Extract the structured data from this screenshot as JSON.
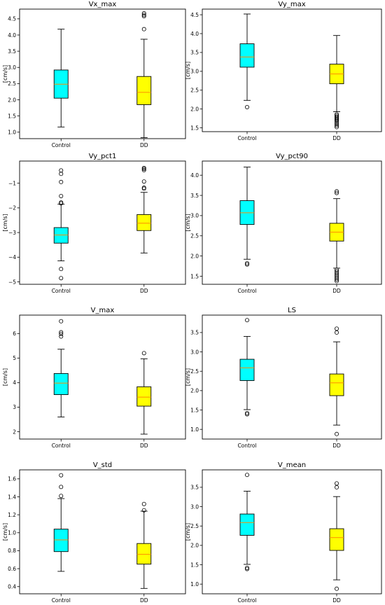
{
  "colors": {
    "control": "#00ffff",
    "dd": "#ffff00",
    "median": "#ff8c00",
    "frame": "#000000"
  },
  "chart_data": [
    {
      "type": "box",
      "title": "Vx_max",
      "ylabel": "[cm/s]",
      "categories": [
        "Control",
        "DD"
      ],
      "ylim": [
        0.8,
        4.8
      ],
      "yticks": [
        1.0,
        1.5,
        2.0,
        2.5,
        3.0,
        3.5,
        4.0,
        4.5
      ],
      "ytick_labels": [
        "1.0",
        "1.5",
        "2.0",
        "2.5",
        "3.0",
        "3.5",
        "4.0",
        "4.5"
      ],
      "series": [
        {
          "q1": 2.05,
          "median": 2.48,
          "q3": 2.92,
          "whisker_low": 1.16,
          "whisker_high": 4.18,
          "outliers": []
        },
        {
          "q1": 1.85,
          "median": 2.23,
          "q3": 2.72,
          "whisker_low": 0.83,
          "whisker_high": 3.87,
          "outliers": [
            4.18,
            4.58,
            4.62,
            4.67
          ]
        }
      ]
    },
    {
      "type": "box",
      "title": "Vy_max",
      "ylabel": "[cm/s]",
      "categories": [
        "Control",
        "DD"
      ],
      "ylim": [
        1.4,
        4.65
      ],
      "yticks": [
        1.5,
        2.0,
        2.5,
        3.0,
        3.5,
        4.0,
        4.5
      ],
      "ytick_labels": [
        "1.5",
        "2.0",
        "2.5",
        "3.0",
        "3.5",
        "4.0",
        "4.5"
      ],
      "series": [
        {
          "q1": 3.11,
          "median": 3.38,
          "q3": 3.73,
          "whisker_low": 2.23,
          "whisker_high": 4.52,
          "outliers": [
            2.05
          ]
        },
        {
          "q1": 2.67,
          "median": 2.93,
          "q3": 3.19,
          "whisker_low": 1.93,
          "whisker_high": 3.95,
          "outliers": [
            1.52,
            1.56,
            1.6,
            1.64,
            1.68,
            1.71,
            1.74,
            1.77,
            1.8,
            1.83,
            1.86
          ]
        }
      ]
    },
    {
      "type": "box",
      "title": "Vy_pct1",
      "ylabel": "[cm/s]",
      "categories": [
        "Control",
        "DD"
      ],
      "ylim": [
        -5.1,
        -0.1
      ],
      "yticks": [
        -5,
        -4,
        -3,
        -2,
        -1
      ],
      "ytick_labels": [
        "−5",
        "−4",
        "−3",
        "−2",
        "−1"
      ],
      "series": [
        {
          "q1": -3.43,
          "median": -3.1,
          "q3": -2.8,
          "whisker_low": -4.15,
          "whisker_high": -1.85,
          "outliers": [
            -4.85,
            -4.48,
            -1.82,
            -1.78,
            -1.52,
            -0.95,
            -0.62,
            -0.48
          ]
        },
        {
          "q1": -2.92,
          "median": -2.62,
          "q3": -2.27,
          "whisker_low": -3.83,
          "whisker_high": -1.37,
          "outliers": [
            -1.22,
            -1.18,
            -0.93,
            -0.47,
            -0.42,
            -0.38
          ]
        }
      ]
    },
    {
      "type": "box",
      "title": "Vy_pct90",
      "ylabel": "[cm/s]",
      "categories": [
        "Control",
        "DD"
      ],
      "ylim": [
        1.3,
        4.35
      ],
      "yticks": [
        1.5,
        2.0,
        2.5,
        3.0,
        3.5,
        4.0
      ],
      "ytick_labels": [
        "1.5",
        "2.0",
        "2.5",
        "3.0",
        "3.5",
        "4.0"
      ],
      "series": [
        {
          "q1": 2.78,
          "median": 3.07,
          "q3": 3.37,
          "whisker_low": 1.92,
          "whisker_high": 4.2,
          "outliers": [
            1.79,
            1.82
          ]
        },
        {
          "q1": 2.37,
          "median": 2.59,
          "q3": 2.81,
          "whisker_low": 1.7,
          "whisker_high": 3.42,
          "outliers": [
            1.38,
            1.42,
            1.46,
            1.5,
            1.54,
            1.58,
            1.62,
            1.66,
            3.56,
            3.6
          ]
        }
      ]
    },
    {
      "type": "box",
      "title": "V_max",
      "ylabel": "[cm/s]",
      "categories": [
        "Control",
        "DD"
      ],
      "ylim": [
        1.7,
        6.75
      ],
      "yticks": [
        2,
        3,
        4,
        5,
        6
      ],
      "ytick_labels": [
        "2",
        "3",
        "4",
        "5",
        "6"
      ],
      "series": [
        {
          "q1": 3.51,
          "median": 3.98,
          "q3": 4.37,
          "whisker_low": 2.6,
          "whisker_high": 5.36,
          "outliers": [
            5.88,
            5.98,
            6.05,
            6.5
          ]
        },
        {
          "q1": 3.04,
          "median": 3.41,
          "q3": 3.83,
          "whisker_low": 1.9,
          "whisker_high": 4.97,
          "outliers": [
            5.2
          ]
        }
      ]
    },
    {
      "type": "box",
      "title": "LS",
      "ylabel": "[cm/s]",
      "categories": [
        "Control",
        "DD"
      ],
      "ylim": [
        0.75,
        3.95
      ],
      "yticks": [
        1.0,
        1.5,
        2.0,
        2.5,
        3.0,
        3.5
      ],
      "ytick_labels": [
        "1.0",
        "1.5",
        "2.0",
        "2.5",
        "3.0",
        "3.5"
      ],
      "series": [
        {
          "q1": 2.26,
          "median": 2.59,
          "q3": 2.81,
          "whisker_low": 1.51,
          "whisker_high": 3.4,
          "outliers": [
            1.39,
            1.42,
            3.82
          ]
        },
        {
          "q1": 1.87,
          "median": 2.2,
          "q3": 2.43,
          "whisker_low": 1.11,
          "whisker_high": 3.26,
          "outliers": [
            0.88,
            3.5,
            3.6
          ]
        }
      ]
    },
    {
      "type": "box",
      "title": "V_std",
      "ylabel": "[cm/s]",
      "categories": [
        "Control",
        "DD"
      ],
      "ylim": [
        0.32,
        1.7
      ],
      "yticks": [
        0.4,
        0.6,
        0.8,
        1.0,
        1.2,
        1.4,
        1.6
      ],
      "ytick_labels": [
        "0.4",
        "0.6",
        "0.8",
        "1.0",
        "1.2",
        "1.4",
        "1.6"
      ],
      "series": [
        {
          "q1": 0.79,
          "median": 0.92,
          "q3": 1.04,
          "whisker_low": 0.57,
          "whisker_high": 1.38,
          "outliers": [
            1.41,
            1.51,
            1.64
          ]
        },
        {
          "q1": 0.65,
          "median": 0.76,
          "q3": 0.88,
          "whisker_low": 0.38,
          "whisker_high": 1.24,
          "outliers": [
            1.25,
            1.32
          ]
        }
      ]
    },
    {
      "type": "box",
      "title": "V_mean",
      "ylabel": "[cm/s]",
      "categories": [
        "Control",
        "DD"
      ],
      "ylim": [
        0.75,
        3.95
      ],
      "yticks": [
        1.0,
        1.5,
        2.0,
        2.5,
        3.0,
        3.5
      ],
      "ytick_labels": [
        "1.0",
        "1.5",
        "2.0",
        "2.5",
        "3.0",
        "3.5"
      ],
      "series": [
        {
          "q1": 2.26,
          "median": 2.59,
          "q3": 2.81,
          "whisker_low": 1.51,
          "whisker_high": 3.4,
          "outliers": [
            1.39,
            1.42,
            3.82
          ]
        },
        {
          "q1": 1.87,
          "median": 2.2,
          "q3": 2.43,
          "whisker_low": 1.11,
          "whisker_high": 3.26,
          "outliers": [
            0.88,
            3.5,
            3.6
          ]
        }
      ]
    }
  ]
}
